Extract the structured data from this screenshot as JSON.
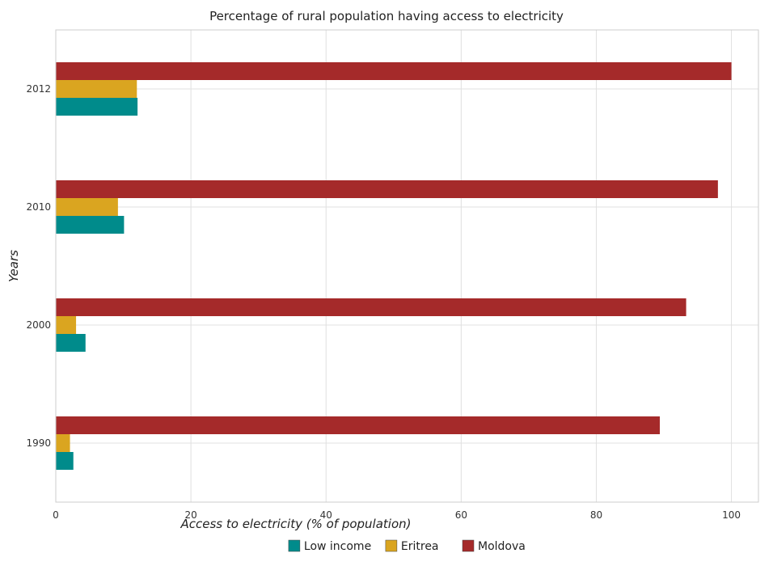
{
  "chart_data": {
    "type": "bar",
    "orientation": "horizontal",
    "title": "Percentage of rural population having access to electricity",
    "xlabel": "Access to electricity (% of population)",
    "ylabel": "Years",
    "categories": [
      "1990",
      "2000",
      "2010",
      "2012"
    ],
    "series": [
      {
        "name": "Low income",
        "color": "#008b8b",
        "values": [
          2.6,
          4.4,
          10.1,
          12.1
        ]
      },
      {
        "name": "Eritrea",
        "color": "#daa520",
        "values": [
          2.1,
          3.0,
          9.2,
          12.0
        ]
      },
      {
        "name": "Moldova",
        "color": "#a52a2a",
        "values": [
          89.4,
          93.3,
          98.0,
          100.0
        ]
      }
    ],
    "xlim": [
      0,
      104
    ],
    "xticks": [
      0,
      20,
      40,
      60,
      80,
      100
    ],
    "grid": true,
    "legend_position": "bottom-center"
  }
}
